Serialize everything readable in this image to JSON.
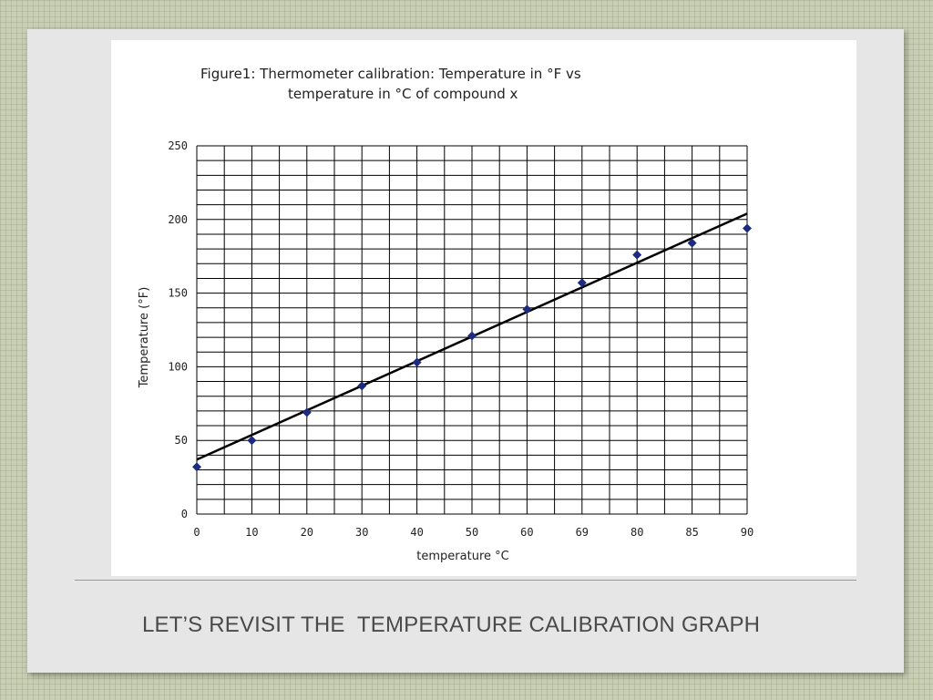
{
  "slide": {
    "caption": "LET’S REVISIT THE  TEMPERATURE CALIBRATION GRAPH"
  },
  "chart_data": {
    "type": "scatter",
    "title_line1": "Figure1:  Thermometer calibration: Temperature in °F vs",
    "title_line2": "temperature in °C of compound x",
    "xlabel": "temperature °C",
    "ylabel": "Temperature (°F)",
    "categories": [
      "0",
      "10",
      "20",
      "30",
      "40",
      "50",
      "60",
      "69",
      "80",
      "85",
      "90"
    ],
    "values": [
      32,
      50,
      69,
      87,
      103,
      121,
      139,
      157,
      176,
      184,
      194
    ],
    "ylim": [
      0,
      250
    ],
    "yticks": [
      "0",
      "50",
      "100",
      "150",
      "200",
      "250"
    ],
    "trendline": {
      "start": 37,
      "end": 204
    },
    "grid": true,
    "colors": {
      "marker": "#1c2a80",
      "line": "#000000",
      "grid": "#000000"
    }
  }
}
